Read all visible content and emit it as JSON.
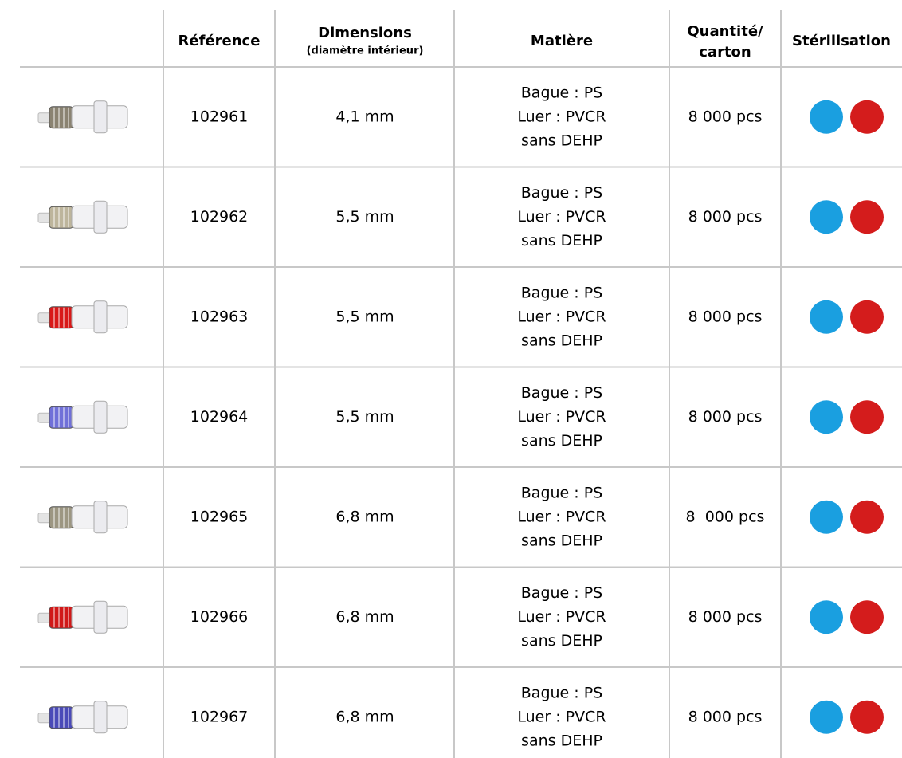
{
  "table": {
    "header": {
      "reference": "Référence",
      "dimensions": "Dimensions",
      "dimensions_note": "(diamètre intérieur)",
      "matiere": "Matière",
      "quantite": [
        "Quantité/",
        "carton"
      ],
      "sterilisation": "Stérilisation"
    },
    "rows": [
      {
        "ring_color": "#8a8372",
        "reference": "102961",
        "dimension": "4,1 mm",
        "matiere": [
          "Bague : PS",
          "Luer : PVCR",
          "sans DEHP"
        ],
        "quantite": "8 000 pcs"
      },
      {
        "ring_color": "#bdb59c",
        "reference": "102962",
        "dimension": "5,5 mm",
        "matiere": [
          "Bague : PS",
          "Luer : PVCR",
          "sans DEHP"
        ],
        "quantite": "8 000 pcs"
      },
      {
        "ring_color": "#d81818",
        "reference": "102963",
        "dimension": "5,5 mm",
        "matiere": [
          "Bague : PS",
          "Luer : PVCR",
          "sans DEHP"
        ],
        "quantite": "8 000 pcs"
      },
      {
        "ring_color": "#7070d8",
        "reference": "102964",
        "dimension": "5,5 mm",
        "matiere": [
          "Bague : PS",
          "Luer : PVCR",
          "sans DEHP"
        ],
        "quantite": "8 000 pcs"
      },
      {
        "ring_color": "#9c9682",
        "reference": "102965",
        "dimension": "6,8 mm",
        "matiere": [
          "Bague : PS",
          "Luer : PVCR",
          "sans DEHP"
        ],
        "quantite": "8  000 pcs"
      },
      {
        "ring_color": "#d01818",
        "reference": "102966",
        "dimension": "6,8 mm",
        "matiere": [
          "Bague : PS",
          "Luer : PVCR",
          "sans DEHP"
        ],
        "quantite": "8 000 pcs"
      },
      {
        "ring_color": "#4a4ab8",
        "reference": "102967",
        "dimension": "6,8 mm",
        "matiere": [
          "Bague : PS",
          "Luer : PVCR",
          "sans DEHP"
        ],
        "quantite": "8 000 pcs"
      }
    ]
  }
}
